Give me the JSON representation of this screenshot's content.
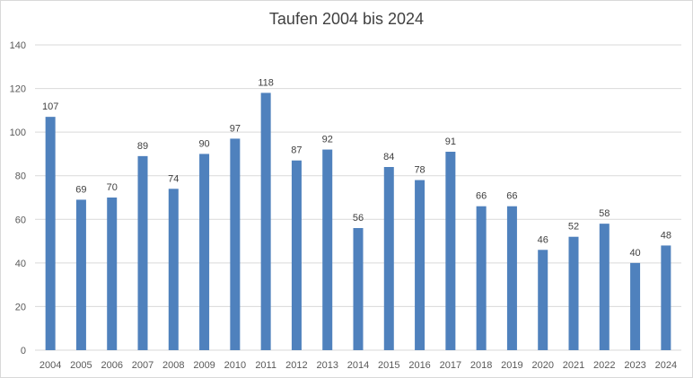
{
  "chart_data": {
    "type": "bar",
    "title": "Taufen 2004 bis 2024",
    "xlabel": "",
    "ylabel": "",
    "categories": [
      "2004",
      "2005",
      "2006",
      "2007",
      "2008",
      "2009",
      "2010",
      "2011",
      "2012",
      "2013",
      "2014",
      "2015",
      "2016",
      "2017",
      "2018",
      "2019",
      "2020",
      "2021",
      "2022",
      "2023",
      "2024"
    ],
    "values": [
      107,
      69,
      70,
      89,
      74,
      90,
      97,
      118,
      87,
      92,
      56,
      84,
      78,
      91,
      66,
      66,
      46,
      52,
      58,
      40,
      48
    ],
    "ylim": [
      0,
      140
    ],
    "yticks": [
      0,
      20,
      40,
      60,
      80,
      100,
      120,
      140
    ],
    "data_labels": true,
    "grid": "horizontal",
    "legend": "none",
    "colors": {
      "bar": "#4f81bd",
      "grid": "#d9d9d9",
      "axis_text": "#595959",
      "label_text": "#404040"
    }
  }
}
